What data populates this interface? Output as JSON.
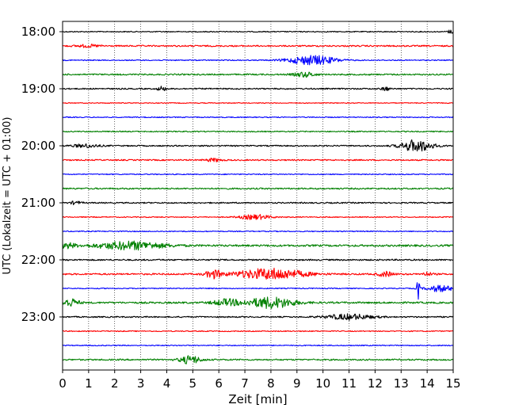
{
  "chart_data": {
    "type": "line",
    "title": "",
    "xlabel": "Zeit  [min]",
    "ylabel": "UTC (Lokalzeit = UTC + 01:00)",
    "xlim": [
      0,
      15
    ],
    "x_ticks": [
      "0",
      "1",
      "2",
      "3",
      "4",
      "5",
      "6",
      "7",
      "8",
      "9",
      "10",
      "11",
      "12",
      "13",
      "14",
      "15"
    ],
    "y_tick_labels": [
      "18:00",
      "19:00",
      "20:00",
      "21:00",
      "22:00",
      "23:00"
    ],
    "grid": "vertical dotted",
    "colors": [
      "#000000",
      "#ff0000",
      "#0000ff",
      "#008000"
    ],
    "trace_minutes_per_line": 15,
    "series": [
      {
        "start": "18:00",
        "color": "#000000",
        "amp": 0.6,
        "events": [
          {
            "t": 14.9,
            "a": 2.0,
            "w": 0.15
          }
        ]
      },
      {
        "start": "18:15",
        "color": "#ff0000",
        "amp": 0.9,
        "events": [
          {
            "t": 1.0,
            "a": 1.4,
            "w": 0.5
          }
        ]
      },
      {
        "start": "18:30",
        "color": "#0000ff",
        "amp": 0.6,
        "events": [
          {
            "t": 9.6,
            "a": 6.0,
            "w": 0.9
          }
        ]
      },
      {
        "start": "18:45",
        "color": "#008000",
        "amp": 0.9,
        "events": [
          {
            "t": 9.3,
            "a": 3.0,
            "w": 0.4
          }
        ]
      },
      {
        "start": "19:00",
        "color": "#000000",
        "amp": 0.8,
        "events": [
          {
            "t": 3.8,
            "a": 3.0,
            "w": 0.15
          },
          {
            "t": 12.4,
            "a": 2.5,
            "w": 0.15
          }
        ]
      },
      {
        "start": "19:15",
        "color": "#ff0000",
        "amp": 0.5,
        "events": []
      },
      {
        "start": "19:30",
        "color": "#0000ff",
        "amp": 0.6,
        "events": []
      },
      {
        "start": "19:45",
        "color": "#008000",
        "amp": 0.7,
        "events": []
      },
      {
        "start": "20:00",
        "color": "#000000",
        "amp": 0.8,
        "events": [
          {
            "t": 0.9,
            "a": 2.2,
            "w": 0.5
          },
          {
            "t": 13.6,
            "a": 7.5,
            "w": 0.6
          }
        ]
      },
      {
        "start": "20:15",
        "color": "#ff0000",
        "amp": 0.8,
        "events": [
          {
            "t": 5.8,
            "a": 2.0,
            "w": 0.3
          }
        ]
      },
      {
        "start": "20:30",
        "color": "#0000ff",
        "amp": 0.6,
        "events": []
      },
      {
        "start": "20:45",
        "color": "#008000",
        "amp": 0.9,
        "events": []
      },
      {
        "start": "21:00",
        "color": "#000000",
        "amp": 0.8,
        "events": [
          {
            "t": 0.5,
            "a": 2.0,
            "w": 0.2
          }
        ]
      },
      {
        "start": "21:15",
        "color": "#ff0000",
        "amp": 0.6,
        "events": [
          {
            "t": 7.4,
            "a": 3.0,
            "w": 0.6
          }
        ]
      },
      {
        "start": "21:30",
        "color": "#0000ff",
        "amp": 0.6,
        "events": []
      },
      {
        "start": "21:45",
        "color": "#008000",
        "amp": 1.2,
        "events": [
          {
            "t": 0.2,
            "a": 3.0,
            "w": 0.3
          },
          {
            "t": 2.6,
            "a": 5.0,
            "w": 1.3
          }
        ]
      },
      {
        "start": "22:00",
        "color": "#000000",
        "amp": 0.9,
        "events": []
      },
      {
        "start": "22:15",
        "color": "#ff0000",
        "amp": 1.0,
        "events": [
          {
            "t": 5.8,
            "a": 5.0,
            "w": 0.3
          },
          {
            "t": 8.0,
            "a": 7.0,
            "w": 1.3
          },
          {
            "t": 12.4,
            "a": 3.0,
            "w": 0.3
          },
          {
            "t": 14.0,
            "a": 2.0,
            "w": 0.2
          }
        ]
      },
      {
        "start": "22:30",
        "color": "#0000ff",
        "amp": 0.6,
        "events": [
          {
            "t": 13.65,
            "a": 16.0,
            "w": 0.05
          },
          {
            "t": 14.5,
            "a": 4.0,
            "w": 0.5
          }
        ]
      },
      {
        "start": "22:45",
        "color": "#008000",
        "amp": 1.1,
        "events": [
          {
            "t": 0.3,
            "a": 5.0,
            "w": 0.3
          },
          {
            "t": 6.3,
            "a": 4.0,
            "w": 0.5
          },
          {
            "t": 8.0,
            "a": 7.0,
            "w": 0.9
          }
        ]
      },
      {
        "start": "23:00",
        "color": "#000000",
        "amp": 0.8,
        "events": [
          {
            "t": 11.0,
            "a": 3.5,
            "w": 0.9
          }
        ]
      },
      {
        "start": "23:15",
        "color": "#ff0000",
        "amp": 0.6,
        "events": []
      },
      {
        "start": "23:30",
        "color": "#0000ff",
        "amp": 0.6,
        "events": []
      },
      {
        "start": "23:45",
        "color": "#008000",
        "amp": 0.9,
        "events": [
          {
            "t": 4.9,
            "a": 5.0,
            "w": 0.4
          }
        ]
      }
    ]
  }
}
